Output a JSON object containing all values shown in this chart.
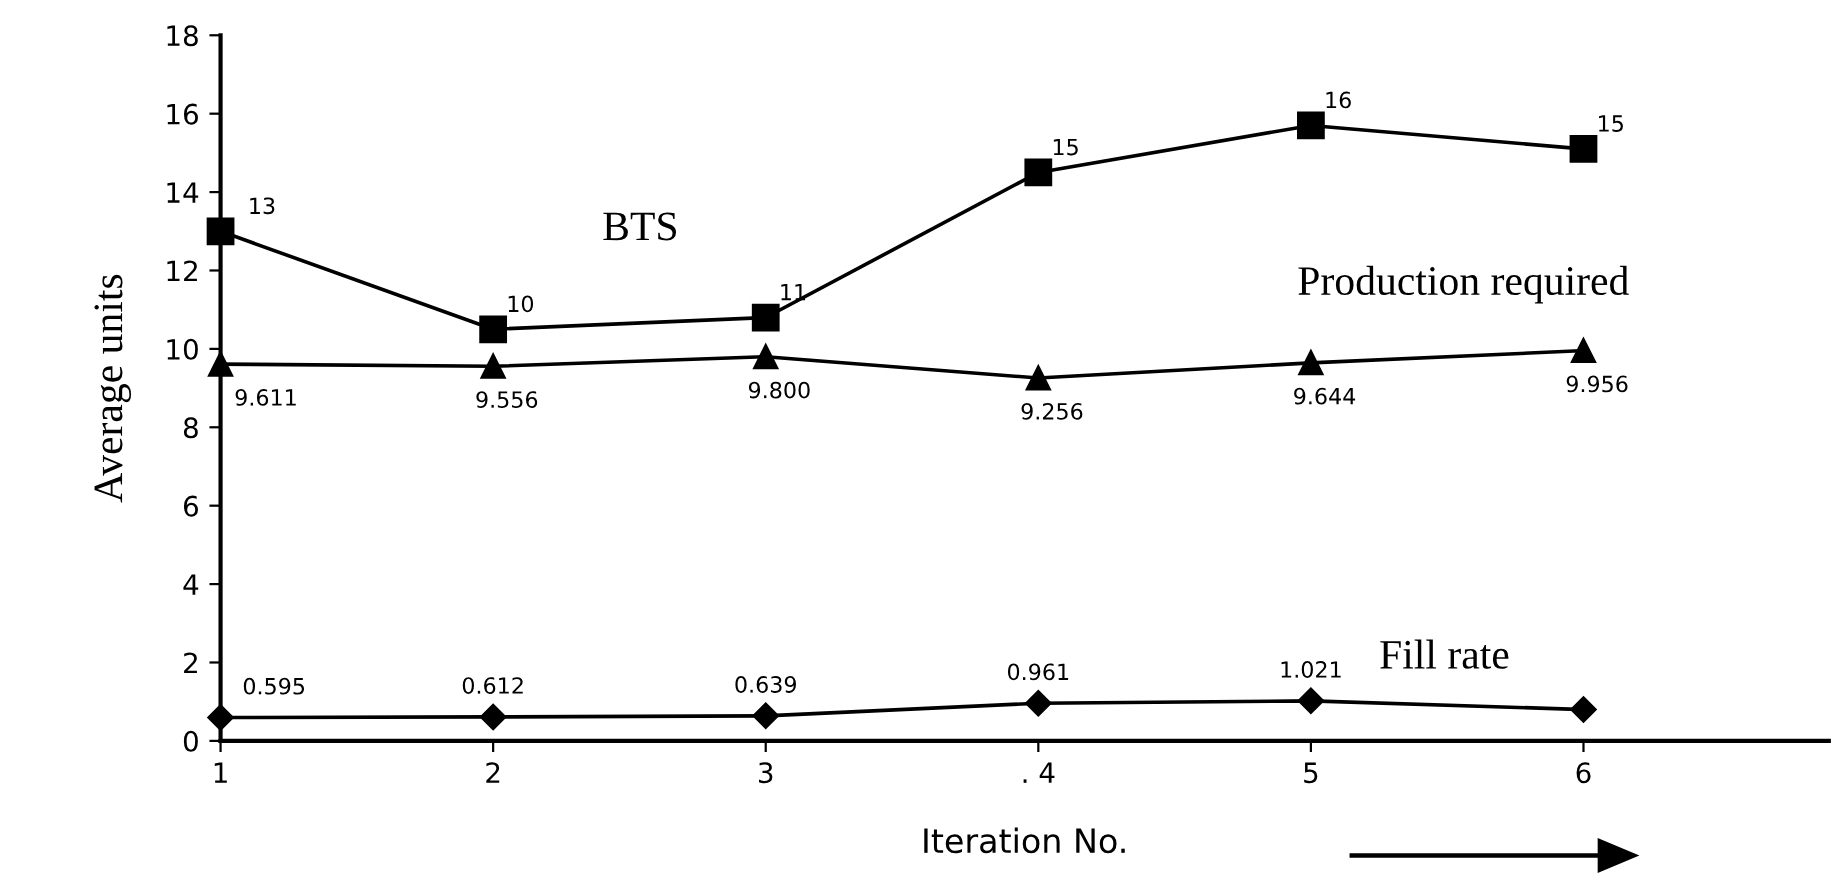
{
  "chart_data": {
    "type": "line",
    "xlabel": "Iteration No.",
    "ylabel": "Average units",
    "x": [
      1,
      2,
      3,
      4,
      5,
      6
    ],
    "xlim": [
      1,
      6.9
    ],
    "xticks": [
      1,
      2,
      3,
      {
        "value": 4,
        "label": ". 4"
      },
      5,
      6
    ],
    "ylim": [
      0,
      18
    ],
    "yticks": [
      0,
      2,
      4,
      6,
      8,
      10,
      12,
      14,
      16,
      18
    ],
    "grid": false,
    "legend": false,
    "line_style": "solid",
    "series": [
      {
        "name": "BTS",
        "color": "#000000",
        "marker": "square",
        "values": [
          13.0,
          10.5,
          10.8,
          14.5,
          15.7,
          15.1
        ],
        "value_labels": [
          "13",
          "10",
          "11",
          "15",
          "16",
          "15"
        ]
      },
      {
        "name": "Production required",
        "color": "#000000",
        "marker": "triangle",
        "values": [
          9.611,
          9.556,
          9.8,
          9.256,
          9.644,
          9.956
        ],
        "value_labels": [
          "9.611",
          "9.556",
          "9.800",
          "9.256",
          "9.644",
          "9.956"
        ]
      },
      {
        "name": "Fill rate",
        "color": "#000000",
        "marker": "diamond",
        "values": [
          0.595,
          0.612,
          0.639,
          0.961,
          1.021,
          0.8
        ],
        "value_labels": [
          "0.595",
          "0.612",
          "0.639",
          "0.961",
          "1.021",
          null
        ]
      }
    ]
  }
}
